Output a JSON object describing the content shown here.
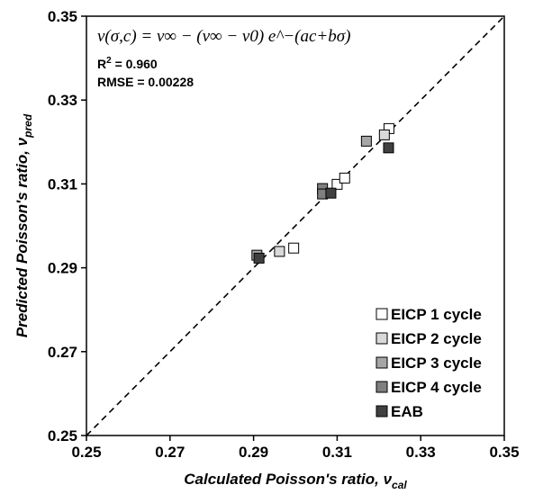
{
  "chart_data": {
    "type": "scatter",
    "title": "",
    "xlabel": {
      "main": "Calculated Poisson's ratio, ",
      "symbol": "ν",
      "sub": "cal"
    },
    "ylabel": {
      "main": "Predicted Poisson's ratio, ",
      "symbol": "ν",
      "sub": "pred"
    },
    "xlim": [
      0.25,
      0.35
    ],
    "ylim": [
      0.25,
      0.35
    ],
    "xticks": [
      "0.25",
      "0.27",
      "0.29",
      "0.31",
      "0.33",
      "0.35"
    ],
    "yticks": [
      "0.25",
      "0.27",
      "0.29",
      "0.31",
      "0.33",
      "0.35"
    ],
    "grid": false,
    "legend_position": "bottom-right",
    "reference_line": {
      "style": "dashed",
      "from": [
        0.25,
        0.25
      ],
      "to": [
        0.35,
        0.35
      ]
    },
    "annotations": {
      "equation": "ν(σ,c) = ν∞ − (ν∞ − ν0) e^−(ac+bσ)",
      "r2_label": "R",
      "r2_sup": "2",
      "r2_value": " = 0.960",
      "rmse": "RMSE = 0.00228"
    },
    "series": [
      {
        "name": "EICP 1 cycle",
        "color": "#ffffff",
        "points": [
          [
            0.2996,
            0.2947
          ],
          [
            0.31,
            0.3099
          ],
          [
            0.3118,
            0.3114
          ],
          [
            0.3224,
            0.3232
          ]
        ]
      },
      {
        "name": "EICP 2 cycle",
        "color": "#d9d9d9",
        "points": [
          [
            0.2962,
            0.2939
          ],
          [
            0.3213,
            0.3217
          ]
        ]
      },
      {
        "name": "EICP 3 cycle",
        "color": "#a6a6a6",
        "points": [
          [
            0.2908,
            0.293
          ],
          [
            0.317,
            0.3202
          ]
        ]
      },
      {
        "name": "EICP 4 cycle",
        "color": "#7f7f7f",
        "points": [
          [
            0.3065,
            0.3089
          ],
          [
            0.3065,
            0.3076
          ]
        ]
      },
      {
        "name": "EAB",
        "color": "#404040",
        "points": [
          [
            0.2913,
            0.2923
          ],
          [
            0.3085,
            0.3078
          ],
          [
            0.3223,
            0.3186
          ]
        ]
      }
    ]
  }
}
